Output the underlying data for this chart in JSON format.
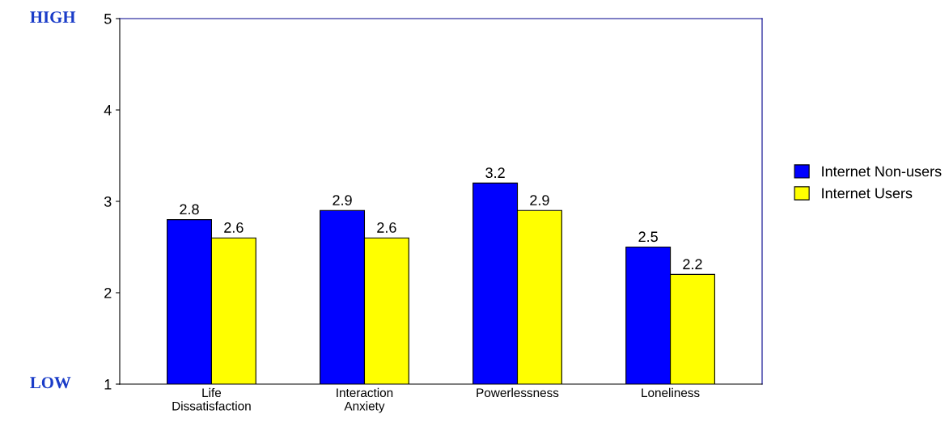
{
  "chart_data": {
    "type": "bar",
    "categories": [
      "Life\nDissatisfaction",
      "Interaction\nAnxiety",
      "Powerlessness",
      "Loneliness"
    ],
    "series": [
      {
        "name": "Internet Non-users",
        "color": "#0000ff",
        "values": [
          2.8,
          2.9,
          3.2,
          2.5
        ]
      },
      {
        "name": "Internet Users",
        "color": "#ffff00",
        "values": [
          2.6,
          2.6,
          2.9,
          2.2
        ]
      }
    ],
    "ylim": [
      1,
      5
    ],
    "yticks": [
      1,
      2,
      3,
      4,
      5
    ],
    "data_labels": true,
    "grid": false,
    "legend": "right",
    "annotations": [
      "HIGH",
      "LOW"
    ]
  }
}
